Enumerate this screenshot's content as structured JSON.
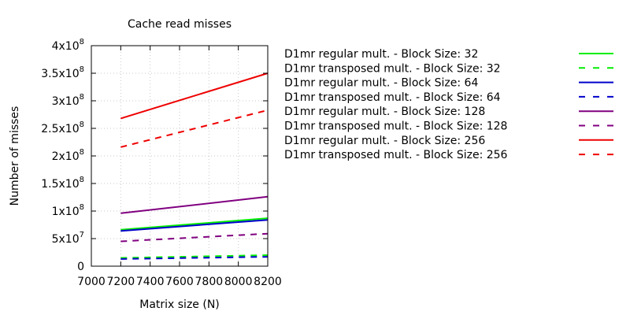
{
  "chart_data": {
    "type": "line",
    "title": "Cache read misses",
    "xlabel": "Matrix size (N)",
    "ylabel": "Number of misses",
    "xlim": [
      7000,
      8200
    ],
    "ylim": [
      0,
      400000000
    ],
    "grid": true,
    "legend_position": "right",
    "x_ticks": [
      {
        "value": 7000,
        "label": "7000"
      },
      {
        "value": 7200,
        "label": "7200"
      },
      {
        "value": 7400,
        "label": "7400"
      },
      {
        "value": 7600,
        "label": "7600"
      },
      {
        "value": 7800,
        "label": "7800"
      },
      {
        "value": 8000,
        "label": "8000"
      },
      {
        "value": 8200,
        "label": "8200"
      }
    ],
    "y_ticks": [
      {
        "value": 0,
        "base": "0",
        "exp": ""
      },
      {
        "value": 50000000,
        "base": "5x10",
        "exp": "7"
      },
      {
        "value": 100000000,
        "base": "1x10",
        "exp": "8"
      },
      {
        "value": 150000000,
        "base": "1.5x10",
        "exp": "8"
      },
      {
        "value": 200000000,
        "base": "2x10",
        "exp": "8"
      },
      {
        "value": 250000000,
        "base": "2.5x10",
        "exp": "8"
      },
      {
        "value": 300000000,
        "base": "3x10",
        "exp": "8"
      },
      {
        "value": 350000000,
        "base": "3.5x10",
        "exp": "8"
      },
      {
        "value": 400000000,
        "base": "4x10",
        "exp": "8"
      }
    ],
    "x": [
      7200,
      8200
    ],
    "series": [
      {
        "name": "D1mr regular mult. - Block Size: 32",
        "color": "#00ee00",
        "dash": false,
        "values": [
          66000000,
          87000000
        ]
      },
      {
        "name": "D1mr transposed mult. - Block Size: 32",
        "color": "#00ee00",
        "dash": true,
        "values": [
          15000000,
          20000000
        ]
      },
      {
        "name": "D1mr regular mult. - Block Size: 64",
        "color": "#0000cc",
        "dash": false,
        "values": [
          64000000,
          84000000
        ]
      },
      {
        "name": "D1mr transposed mult. - Block Size: 64",
        "color": "#0000cc",
        "dash": true,
        "values": [
          13000000,
          17000000
        ]
      },
      {
        "name": "D1mr regular mult. - Block Size: 128",
        "color": "#800080",
        "dash": false,
        "values": [
          96000000,
          126000000
        ]
      },
      {
        "name": "D1mr transposed mult. - Block Size: 128",
        "color": "#800080",
        "dash": true,
        "values": [
          45000000,
          59000000
        ]
      },
      {
        "name": "D1mr regular mult. - Block Size: 256",
        "color": "#ee0000",
        "dash": false,
        "values": [
          268000000,
          350000000
        ]
      },
      {
        "name": "D1mr transposed mult. - Block Size: 256",
        "color": "#ee0000",
        "dash": true,
        "values": [
          216000000,
          283000000
        ]
      }
    ]
  }
}
